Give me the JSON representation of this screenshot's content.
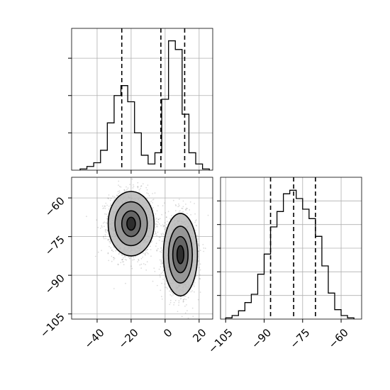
{
  "chart_data": [
    {
      "panel": "x-marginal",
      "type": "histogram",
      "x_range": [
        -55,
        28
      ],
      "y_range": [
        0,
        1.14
      ],
      "bins": [
        {
          "x0": -50,
          "x1": -46,
          "value": 0.01
        },
        {
          "x0": -46,
          "x1": -42,
          "value": 0.03
        },
        {
          "x0": -42,
          "x1": -38,
          "value": 0.06
        },
        {
          "x0": -38,
          "x1": -34,
          "value": 0.16
        },
        {
          "x0": -34,
          "x1": -30,
          "value": 0.38
        },
        {
          "x0": -30,
          "x1": -26,
          "value": 0.6
        },
        {
          "x0": -26,
          "x1": -22,
          "value": 0.68
        },
        {
          "x0": -22,
          "x1": -18,
          "value": 0.55
        },
        {
          "x0": -18,
          "x1": -14,
          "value": 0.3
        },
        {
          "x0": -14,
          "x1": -10,
          "value": 0.12
        },
        {
          "x0": -10,
          "x1": -6,
          "value": 0.05
        },
        {
          "x0": -6,
          "x1": -2,
          "value": 0.14
        },
        {
          "x0": -2,
          "x1": 2,
          "value": 0.57
        },
        {
          "x0": 2,
          "x1": 6,
          "value": 1.04
        },
        {
          "x0": 6,
          "x1": 10,
          "value": 0.97
        },
        {
          "x0": 10,
          "x1": 14,
          "value": 0.45
        },
        {
          "x0": 14,
          "x1": 18,
          "value": 0.14
        },
        {
          "x0": 18,
          "x1": 22,
          "value": 0.05
        },
        {
          "x0": 22,
          "x1": 26,
          "value": 0.01
        }
      ],
      "quantiles": [
        -25.5,
        -2.5,
        11.5
      ],
      "grid": true,
      "tick_values": [
        -40,
        -20,
        0,
        20
      ],
      "y_tick_values": [
        0.3,
        0.6,
        0.9
      ]
    },
    {
      "panel": "joint",
      "type": "scatter-contour",
      "x_range": [
        -55,
        28
      ],
      "y_range": [
        -107,
        -52
      ],
      "x_ticks": [
        {
          "value": -40,
          "label": "−40"
        },
        {
          "value": -20,
          "label": "−20"
        },
        {
          "value": 0,
          "label": "0"
        },
        {
          "value": 20,
          "label": "20"
        }
      ],
      "y_ticks": [
        {
          "value": -60,
          "label": "−60"
        },
        {
          "value": -75,
          "label": "−75"
        },
        {
          "value": -90,
          "label": "−90"
        },
        {
          "value": -105,
          "label": "−105"
        }
      ],
      "clusters": [
        {
          "center": [
            -20,
            -70
          ],
          "spread": [
            6.5,
            6.0
          ],
          "point_count": 2200,
          "contours": [
            {
              "rx": 13.5,
              "ry": 12.5
            },
            {
              "rx": 9.5,
              "ry": 8.5
            },
            {
              "rx": 5.5,
              "ry": 5.0
            },
            {
              "rx": 2.5,
              "ry": 2.5
            }
          ]
        },
        {
          "center": [
            9,
            -82
          ],
          "spread": [
            4.5,
            7.0
          ],
          "point_count": 2200,
          "contours": [
            {
              "rx": 10.0,
              "ry": 16.0
            },
            {
              "rx": 7.0,
              "ry": 11.0
            },
            {
              "rx": 4.5,
              "ry": 7.0
            },
            {
              "rx": 2.0,
              "ry": 3.5
            }
          ]
        }
      ],
      "grid": true
    },
    {
      "panel": "y-marginal",
      "type": "histogram",
      "x_range": [
        -107,
        -52
      ],
      "y_range": [
        0,
        1.2
      ],
      "bins": [
        {
          "x0": -105,
          "x1": -102.5,
          "value": 0.01
        },
        {
          "x0": -102.5,
          "x1": -100,
          "value": 0.03
        },
        {
          "x0": -100,
          "x1": -97.5,
          "value": 0.07
        },
        {
          "x0": -97.5,
          "x1": -95,
          "value": 0.14
        },
        {
          "x0": -95,
          "x1": -92.5,
          "value": 0.21
        },
        {
          "x0": -92.5,
          "x1": -90,
          "value": 0.38
        },
        {
          "x0": -90,
          "x1": -87.5,
          "value": 0.55
        },
        {
          "x0": -87.5,
          "x1": -85,
          "value": 0.78
        },
        {
          "x0": -85,
          "x1": -82.5,
          "value": 0.91
        },
        {
          "x0": -82.5,
          "x1": -80,
          "value": 1.06
        },
        {
          "x0": -80,
          "x1": -77.5,
          "value": 1.09
        },
        {
          "x0": -77.5,
          "x1": -75,
          "value": 1.02
        },
        {
          "x0": -75,
          "x1": -72.5,
          "value": 0.93
        },
        {
          "x0": -72.5,
          "x1": -70,
          "value": 0.85
        },
        {
          "x0": -70,
          "x1": -67.5,
          "value": 0.7
        },
        {
          "x0": -67.5,
          "x1": -65,
          "value": 0.45
        },
        {
          "x0": -65,
          "x1": -62.5,
          "value": 0.22
        },
        {
          "x0": -62.5,
          "x1": -60,
          "value": 0.08
        },
        {
          "x0": -60,
          "x1": -57.5,
          "value": 0.03
        },
        {
          "x0": -57.5,
          "x1": -55,
          "value": 0.01
        }
      ],
      "quantiles": [
        -87.5,
        -78.5,
        -70.0
      ],
      "x_ticks": [
        {
          "value": -105,
          "label": "−105"
        },
        {
          "value": -90,
          "label": "−90"
        },
        {
          "value": -75,
          "label": "−75"
        },
        {
          "value": -60,
          "label": "−60"
        }
      ],
      "y_tick_values": [
        0.2,
        0.4,
        0.6,
        0.8,
        1.0
      ],
      "grid": true
    }
  ]
}
